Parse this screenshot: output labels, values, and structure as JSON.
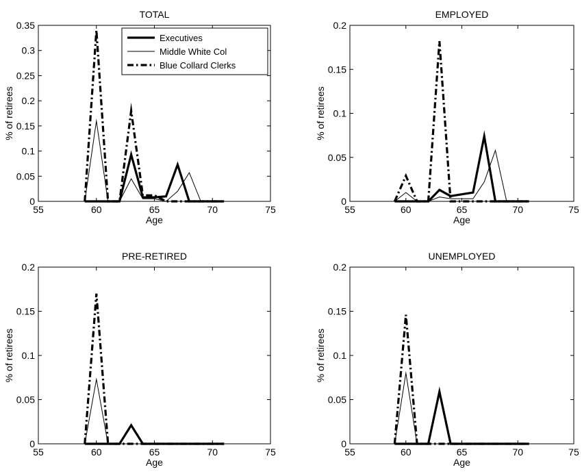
{
  "legend": {
    "placement": "top-right of TOTAL panel",
    "entries": [
      {
        "name": "Executives",
        "style": "thick-solid"
      },
      {
        "name": "Middle White Col",
        "style": "thin-solid"
      },
      {
        "name": "Blue Collard Clerks",
        "style": "dash-dot"
      }
    ]
  },
  "chart_data": [
    {
      "type": "line",
      "title": "TOTAL",
      "xlabel": "Age",
      "ylabel": "% of retirees",
      "xlim": [
        55,
        75
      ],
      "ylim": [
        0,
        0.35
      ],
      "xticks": [
        "55",
        "60",
        "65",
        "70",
        "75"
      ],
      "yticks": [
        "0",
        "0.05",
        "0.1",
        "0.15",
        "0.2",
        "0.25",
        "0.3",
        "0.35"
      ],
      "grid": false,
      "x": [
        59,
        60,
        61,
        62,
        63,
        64,
        65,
        66,
        67,
        68,
        69,
        70,
        71
      ],
      "series": [
        {
          "name": "Executives",
          "values": [
            0,
            0,
            0,
            0,
            0.093,
            0.008,
            0.008,
            0.01,
            0.073,
            0,
            0,
            0,
            0
          ]
        },
        {
          "name": "Middle White Col",
          "values": [
            0,
            0.16,
            0,
            0,
            0.045,
            0.005,
            0.005,
            0,
            0.02,
            0.057,
            0,
            0,
            0
          ]
        },
        {
          "name": "Blue Collard Clerks",
          "values": [
            0,
            0.34,
            0,
            0,
            0.18,
            0.012,
            0.012,
            0,
            0,
            0,
            0,
            0,
            0
          ]
        }
      ]
    },
    {
      "type": "line",
      "title": "EMPLOYED",
      "xlabel": "Age",
      "ylabel": "% of retirees",
      "xlim": [
        55,
        75
      ],
      "ylim": [
        0,
        0.2
      ],
      "xticks": [
        "55",
        "60",
        "65",
        "70",
        "75"
      ],
      "yticks": [
        "0",
        "0.05",
        "0.1",
        "0.15",
        "0.2"
      ],
      "grid": false,
      "x": [
        59,
        60,
        61,
        62,
        63,
        64,
        65,
        66,
        67,
        68,
        69,
        70,
        71
      ],
      "series": [
        {
          "name": "Executives",
          "values": [
            0,
            0,
            0,
            0,
            0.013,
            0.006,
            0.008,
            0.01,
            0.074,
            0,
            0,
            0,
            0
          ]
        },
        {
          "name": "Middle White Col",
          "values": [
            0,
            0.01,
            0,
            0,
            0.005,
            0.003,
            0.003,
            0.003,
            0.022,
            0.058,
            0,
            0,
            0
          ]
        },
        {
          "name": "Blue Collard Clerks",
          "values": [
            0,
            0.029,
            0,
            0,
            0.182,
            0,
            0,
            0,
            0,
            0,
            0,
            0,
            0
          ]
        }
      ]
    },
    {
      "type": "line",
      "title": "PRE-RETIRED",
      "xlabel": "Age",
      "ylabel": "% of retirees",
      "xlim": [
        55,
        75
      ],
      "ylim": [
        0,
        0.2
      ],
      "xticks": [
        "55",
        "60",
        "65",
        "70",
        "75"
      ],
      "yticks": [
        "0",
        "0.05",
        "0.1",
        "0.15",
        "0.2"
      ],
      "grid": false,
      "x": [
        59,
        60,
        61,
        62,
        63,
        64,
        65,
        66,
        67,
        68,
        69,
        70,
        71
      ],
      "series": [
        {
          "name": "Executives",
          "values": [
            0,
            0,
            0,
            0,
            0.021,
            0,
            0,
            0,
            0,
            0,
            0,
            0,
            0
          ]
        },
        {
          "name": "Middle White Col",
          "values": [
            0,
            0.073,
            0,
            0,
            0,
            0,
            0,
            0,
            0,
            0,
            0,
            0,
            0
          ]
        },
        {
          "name": "Blue Collard Clerks",
          "values": [
            0,
            0.17,
            0,
            0,
            0,
            0,
            0,
            0,
            0,
            0,
            0,
            0,
            0
          ]
        }
      ]
    },
    {
      "type": "line",
      "title": "UNEMPLOYED",
      "xlabel": "Age",
      "ylabel": "% of retirees",
      "xlim": [
        55,
        75
      ],
      "ylim": [
        0,
        0.2
      ],
      "xticks": [
        "55",
        "60",
        "65",
        "70",
        "75"
      ],
      "yticks": [
        "0",
        "0.05",
        "0.1",
        "0.15",
        "0.2"
      ],
      "grid": false,
      "x": [
        59,
        60,
        61,
        62,
        63,
        64,
        65,
        66,
        67,
        68,
        69,
        70,
        71
      ],
      "series": [
        {
          "name": "Executives",
          "values": [
            0,
            0,
            0,
            0,
            0.059,
            0,
            0,
            0,
            0,
            0,
            0,
            0,
            0
          ]
        },
        {
          "name": "Middle White Col",
          "values": [
            0,
            0.08,
            0,
            0,
            0,
            0,
            0,
            0,
            0,
            0,
            0,
            0,
            0
          ]
        },
        {
          "name": "Blue Collard Clerks",
          "values": [
            0,
            0.146,
            0,
            0,
            0,
            0,
            0,
            0,
            0,
            0,
            0,
            0,
            0
          ]
        }
      ]
    }
  ]
}
